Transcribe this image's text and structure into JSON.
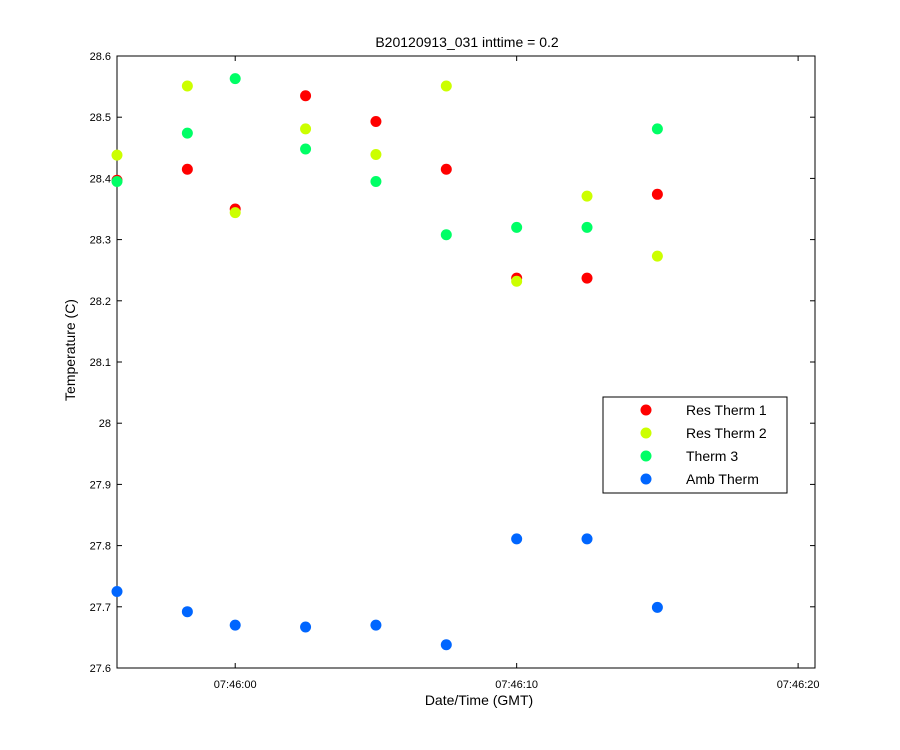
{
  "chart_data": {
    "type": "scatter",
    "title": "B20120913_031 inttime = 0.2",
    "xlabel": "Date/Time (GMT)",
    "ylabel": "Temperature (C)",
    "x_unit": "time (HH:MM:SS GMT)",
    "xlim": [
      "07:45:55.8",
      "07:46:20.6"
    ],
    "ylim": [
      27.6,
      28.6
    ],
    "x_ticks": [
      "07:46:00",
      "07:46:10",
      "07:46:20"
    ],
    "y_ticks": [
      "27.6",
      "27.7",
      "27.8",
      "27.9",
      "28",
      "28.1",
      "28.2",
      "28.3",
      "28.4",
      "28.5",
      "28.6"
    ],
    "x": [
      "07:45:55.8",
      "07:45:58.3",
      "07:46:00.0",
      "07:46:02.5",
      "07:46:05.0",
      "07:46:07.5",
      "07:46:10.0",
      "07:46:12.5",
      "07:46:15.0"
    ],
    "grid": false,
    "legend_position": "center-right",
    "series": [
      {
        "name": "Res Therm 1",
        "color": "#ff0000",
        "values": [
          28.397,
          28.415,
          28.35,
          28.535,
          28.493,
          28.415,
          28.237,
          28.237,
          28.374
        ]
      },
      {
        "name": "Res Therm 2",
        "color": "#ccff00",
        "values": [
          28.438,
          28.551,
          28.344,
          28.481,
          28.439,
          28.551,
          28.232,
          28.371,
          28.273
        ]
      },
      {
        "name": "Therm 3",
        "color": "#00ff66",
        "values": [
          28.395,
          28.474,
          28.563,
          28.448,
          28.395,
          28.308,
          28.32,
          28.32,
          28.481
        ]
      },
      {
        "name": "Amb Therm",
        "color": "#0066ff",
        "values": [
          27.725,
          27.692,
          27.67,
          27.667,
          27.67,
          27.638,
          27.811,
          27.811,
          27.699
        ]
      }
    ]
  }
}
